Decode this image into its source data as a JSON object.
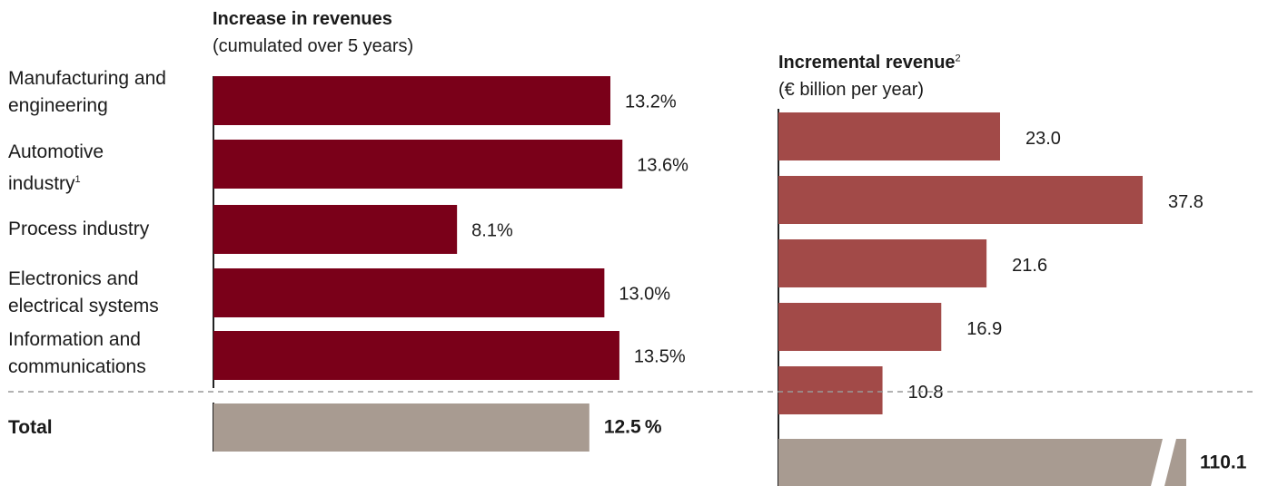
{
  "categories": [
    [
      "Manufacturing and",
      "engineering"
    ],
    [
      "Automotive",
      "industry"
    ],
    [
      "Process industry"
    ],
    [
      "Electronics and",
      "electrical systems"
    ],
    [
      "Information and",
      "communications"
    ]
  ],
  "category_footnotes": [
    "",
    "1",
    "",
    "",
    ""
  ],
  "total_label": "Total",
  "colors": {
    "bar_left": "#7a0019",
    "bar_right": "#a24a48",
    "total": "#a89b91",
    "divider": "#999999"
  },
  "chart_data": [
    {
      "type": "bar",
      "orientation": "horizontal",
      "title": "Increase in revenues",
      "subtitle": "(cumulated over 5 years)",
      "categories": [
        "Manufacturing and engineering",
        "Automotive industry",
        "Process industry",
        "Electronics and electrical systems",
        "Information and communications"
      ],
      "values": [
        13.2,
        13.6,
        8.1,
        13.0,
        13.5
      ],
      "labels": [
        "13.2%",
        "13.6%",
        "8.1%",
        "13.0%",
        "13.5%"
      ],
      "total": {
        "label": "Total",
        "value": 12.5,
        "text": "12.5 %"
      }
    },
    {
      "type": "bar",
      "orientation": "horizontal",
      "title": "Incremental revenue",
      "title_footnote": "2",
      "subtitle": "(€ billion per year)",
      "categories": [
        "Manufacturing and engineering",
        "Automotive industry",
        "Process industry",
        "Electronics and electrical systems",
        "Information and communications"
      ],
      "values": [
        23.0,
        37.8,
        21.6,
        16.9,
        10.8
      ],
      "labels": [
        "23.0",
        "37.8",
        "21.6",
        "16.9",
        "10.8"
      ],
      "total": {
        "label": "Total",
        "value": 110.1,
        "text": "110.1",
        "axis_break": true
      }
    }
  ]
}
